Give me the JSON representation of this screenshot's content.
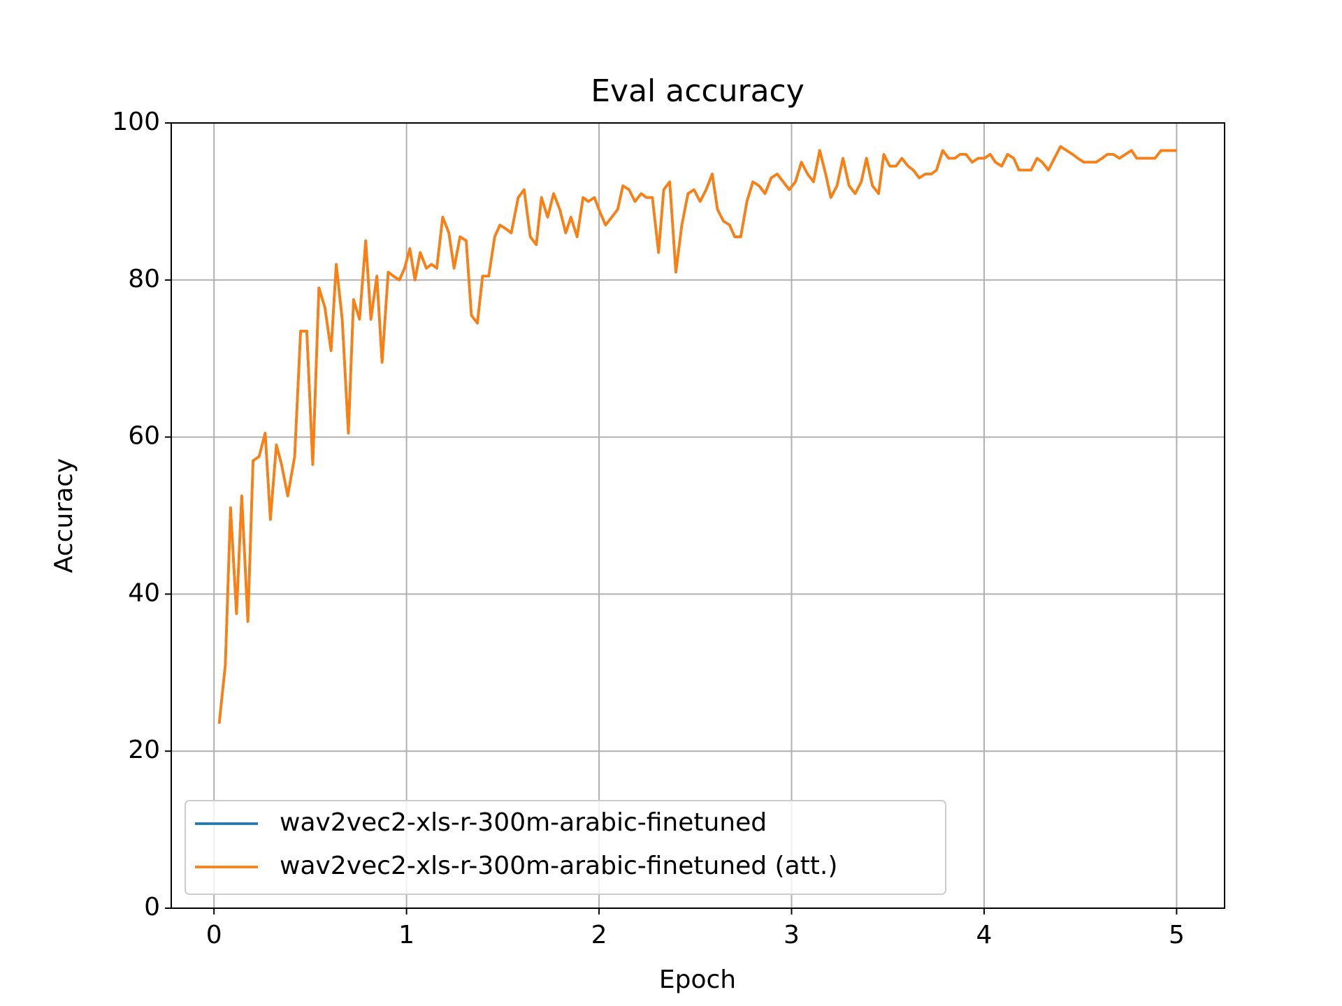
{
  "chart_data": {
    "type": "line",
    "title": "Eval accuracy",
    "xlabel": "Epoch",
    "ylabel": "Accuracy",
    "x": [
      0.027,
      0.059,
      0.086,
      0.117,
      0.144,
      0.176,
      0.203,
      0.234,
      0.266,
      0.293,
      0.324,
      0.351,
      0.383,
      0.419,
      0.45,
      0.482,
      0.513,
      0.545,
      0.576,
      0.608,
      0.635,
      0.666,
      0.698,
      0.725,
      0.756,
      0.788,
      0.815,
      0.846,
      0.873,
      0.905,
      0.932,
      0.963,
      0.99,
      1.017,
      1.044,
      1.071,
      1.103,
      1.13,
      1.157,
      1.188,
      1.22,
      1.247,
      1.278,
      1.31,
      1.337,
      1.368,
      1.395,
      1.427,
      1.458,
      1.485,
      1.517,
      1.544,
      1.58,
      1.611,
      1.643,
      1.674,
      1.701,
      1.733,
      1.764,
      1.796,
      1.827,
      1.854,
      1.886,
      1.917,
      1.944,
      1.976,
      2.007,
      2.034,
      2.066,
      2.097,
      2.124,
      2.156,
      2.187,
      2.219,
      2.246,
      2.277,
      2.309,
      2.336,
      2.367,
      2.399,
      2.43,
      2.462,
      2.493,
      2.525,
      2.556,
      2.588,
      2.615,
      2.646,
      2.678,
      2.705,
      2.736,
      2.768,
      2.799,
      2.831,
      2.862,
      2.894,
      2.925,
      2.957,
      2.988,
      3.02,
      3.051,
      3.083,
      3.114,
      3.146,
      3.177,
      3.204,
      3.236,
      3.267,
      3.299,
      3.33,
      3.362,
      3.389,
      3.42,
      3.452,
      3.479,
      3.51,
      3.542,
      3.573,
      3.605,
      3.632,
      3.663,
      3.695,
      3.726,
      3.753,
      3.785,
      3.816,
      3.848,
      3.875,
      3.906,
      3.938,
      3.969,
      4.001,
      4.032,
      4.059,
      4.091,
      4.122,
      4.154,
      4.181,
      4.212,
      4.244,
      4.275,
      4.302,
      4.334,
      4.365,
      4.397,
      4.428,
      4.46,
      4.487,
      4.518,
      4.55,
      4.581,
      4.613,
      4.64,
      4.671,
      4.703,
      4.734,
      4.766,
      4.793,
      4.824,
      4.856,
      4.887,
      4.919,
      4.95,
      5.0
    ],
    "series": [
      {
        "name": "wav2vec2-xls-r-300m-arabic-finetuned",
        "color": "#1f77b4",
        "values": [
          23.5,
          31,
          51,
          37.5,
          52.5,
          36.5,
          57,
          57.5,
          60.5,
          49.5,
          59,
          56.5,
          52.5,
          57.5,
          73.5,
          73.5,
          56.5,
          79,
          76.5,
          71,
          82,
          75,
          60.5,
          77.5,
          75,
          85,
          75,
          80.5,
          69.5,
          81,
          80.5,
          80,
          81.5,
          84,
          80,
          83.5,
          81.5,
          82,
          81.5,
          88,
          86,
          81.5,
          85.5,
          85,
          75.5,
          74.5,
          80.5,
          80.5,
          85.5,
          87,
          86.5,
          86,
          90.5,
          91.5,
          85.5,
          84.5,
          90.5,
          88,
          91,
          89,
          86,
          88,
          85.5,
          90.5,
          90,
          90.5,
          88.5,
          87,
          88,
          89,
          92,
          91.5,
          90,
          91,
          90.5,
          90.5,
          83.5,
          91.5,
          92.5,
          81,
          87,
          91,
          91.5,
          90,
          91.5,
          93.5,
          89,
          87.5,
          87,
          85.5,
          85.5,
          90,
          92.5,
          92,
          91,
          93,
          93.5,
          92.5,
          91.5,
          92.5,
          95,
          93.5,
          92.5,
          96.5,
          93.5,
          90.5,
          92,
          95.5,
          92,
          91,
          92.5,
          95.5,
          92,
          91,
          96,
          94.5,
          94.5,
          95.5,
          94.5,
          94,
          93,
          93.5,
          93.5,
          94,
          96.5,
          95.5,
          95.5,
          96,
          96,
          95,
          95.5,
          95.5,
          96,
          95,
          94.5,
          96,
          95.5,
          94,
          94,
          94,
          95.5,
          95,
          94,
          95.5,
          97,
          96.5,
          96,
          95.5,
          95,
          95,
          95,
          95.5,
          96,
          96,
          95.5,
          96,
          96.5,
          95.5,
          95.5,
          95.5,
          95.5,
          96.5,
          96.5,
          96.5
        ]
      },
      {
        "name": "wav2vec2-xls-r-300m-arabic-finetuned (att.)",
        "color": "#ff7f0e",
        "values": [
          23.5,
          31,
          51,
          37.5,
          52.5,
          36.5,
          57,
          57.5,
          60.5,
          49.5,
          59,
          56.5,
          52.5,
          57.5,
          73.5,
          73.5,
          56.5,
          79,
          76.5,
          71,
          82,
          75,
          60.5,
          77.5,
          75,
          85,
          75,
          80.5,
          69.5,
          81,
          80.5,
          80,
          81.5,
          84,
          80,
          83.5,
          81.5,
          82,
          81.5,
          88,
          86,
          81.5,
          85.5,
          85,
          75.5,
          74.5,
          80.5,
          80.5,
          85.5,
          87,
          86.5,
          86,
          90.5,
          91.5,
          85.5,
          84.5,
          90.5,
          88,
          91,
          89,
          86,
          88,
          85.5,
          90.5,
          90,
          90.5,
          88.5,
          87,
          88,
          89,
          92,
          91.5,
          90,
          91,
          90.5,
          90.5,
          83.5,
          91.5,
          92.5,
          81,
          87,
          91,
          91.5,
          90,
          91.5,
          93.5,
          89,
          87.5,
          87,
          85.5,
          85.5,
          90,
          92.5,
          92,
          91,
          93,
          93.5,
          92.5,
          91.5,
          92.5,
          95,
          93.5,
          92.5,
          96.5,
          93.5,
          90.5,
          92,
          95.5,
          92,
          91,
          92.5,
          95.5,
          92,
          91,
          96,
          94.5,
          94.5,
          95.5,
          94.5,
          94,
          93,
          93.5,
          93.5,
          94,
          96.5,
          95.5,
          95.5,
          96,
          96,
          95,
          95.5,
          95.5,
          96,
          95,
          94.5,
          96,
          95.5,
          94,
          94,
          94,
          95.5,
          95,
          94,
          95.5,
          97,
          96.5,
          96,
          95.5,
          95,
          95,
          95,
          95.5,
          96,
          96,
          95.5,
          96,
          96.5,
          95.5,
          95.5,
          95.5,
          95.5,
          96.5,
          96.5,
          96.5
        ]
      }
    ],
    "xlim": [
      -0.222,
      5.249
    ],
    "xticks": [
      0,
      1,
      2,
      3,
      4,
      5
    ],
    "ylim": [
      0,
      100
    ],
    "yticks": [
      0,
      20,
      40,
      60,
      80,
      100
    ],
    "grid": true,
    "legend": "lower left"
  }
}
